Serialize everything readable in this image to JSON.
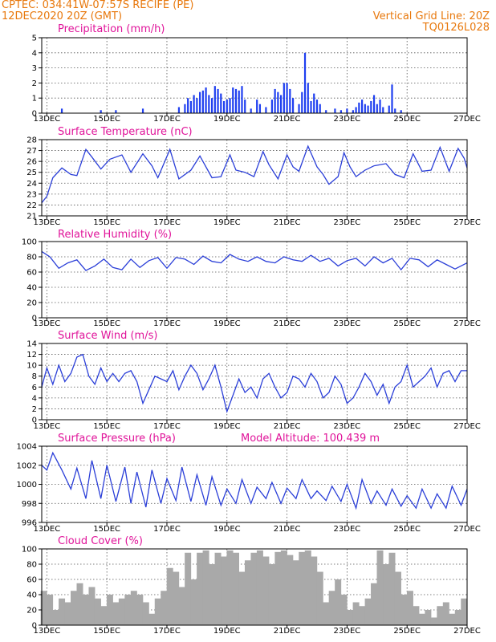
{
  "header": {
    "line1": "CPTEC:   034:41W-07:57S   RECIFE (PE)",
    "line2": "12DEC2020 20Z (GMT)",
    "right1": "Vertical Grid Line: 20Z",
    "right2": "TQ0126L028"
  },
  "colors": {
    "header": "#e8780c",
    "title": "#e0149a",
    "series": "#2b3fd8",
    "precip_bars": "#1f3ff0",
    "cloud_bars": "#a9a9a9"
  },
  "x_axis": {
    "range_days": [
      12.83,
      27.0
    ],
    "tick_days": [
      13,
      15,
      17,
      19,
      21,
      23,
      25,
      27
    ],
    "tick_labels": [
      "13DEC",
      "15DEC",
      "17DEC",
      "19DEC",
      "21DEC",
      "23DEC",
      "25DEC",
      "27DEC"
    ],
    "vertical_grid": "20Z"
  },
  "chart_data": [
    {
      "type": "bar",
      "title": "Precipitation (mm/h)",
      "ylim": [
        0,
        5
      ],
      "yticks": [
        0,
        1,
        2,
        3,
        4,
        5
      ],
      "x": [
        13.5,
        14.8,
        15.3,
        16.2,
        17.4,
        17.6,
        17.7,
        17.8,
        17.9,
        18.0,
        18.1,
        18.2,
        18.3,
        18.4,
        18.5,
        18.6,
        18.7,
        18.8,
        18.9,
        19.0,
        19.1,
        19.2,
        19.3,
        19.4,
        19.5,
        19.6,
        19.8,
        20.0,
        20.1,
        20.3,
        20.5,
        20.6,
        20.7,
        20.8,
        20.9,
        21.0,
        21.1,
        21.2,
        21.4,
        21.5,
        21.6,
        21.7,
        21.8,
        21.9,
        22.0,
        22.1,
        22.3,
        22.6,
        22.8,
        23.0,
        23.2,
        23.3,
        23.4,
        23.5,
        23.6,
        23.7,
        23.8,
        23.9,
        24.0,
        24.1,
        24.2,
        24.4,
        24.5,
        24.6,
        24.8
      ],
      "values": [
        0.3,
        0.2,
        0.2,
        0.3,
        0.4,
        0.6,
        1.0,
        0.8,
        1.2,
        1.0,
        1.4,
        1.5,
        1.7,
        1.2,
        1.0,
        1.8,
        1.6,
        1.3,
        0.8,
        0.9,
        1.0,
        1.7,
        1.6,
        1.5,
        1.8,
        0.9,
        0.3,
        0.9,
        0.6,
        0.4,
        0.9,
        1.6,
        1.4,
        1.2,
        2.0,
        2.0,
        1.6,
        1.0,
        0.6,
        1.4,
        4.0,
        2.0,
        0.8,
        1.3,
        0.9,
        0.6,
        0.2,
        0.3,
        0.2,
        0.3,
        0.2,
        0.4,
        0.7,
        0.9,
        0.6,
        0.5,
        0.8,
        1.2,
        0.6,
        0.9,
        0.4,
        0.5,
        1.9,
        0.3,
        0.2
      ]
    },
    {
      "type": "line",
      "title": "Surface Temperature (nC)",
      "ylim": [
        21,
        28
      ],
      "yticks": [
        21,
        22,
        23,
        24,
        25,
        26,
        27,
        28
      ],
      "x": [
        12.83,
        13.0,
        13.2,
        13.5,
        13.8,
        14.0,
        14.3,
        14.5,
        14.8,
        15.1,
        15.5,
        15.8,
        16.2,
        16.5,
        16.7,
        17.1,
        17.4,
        17.8,
        18.1,
        18.5,
        18.8,
        19.1,
        19.3,
        19.6,
        19.9,
        20.2,
        20.4,
        20.7,
        21.0,
        21.2,
        21.4,
        21.7,
        22.0,
        22.2,
        22.4,
        22.7,
        22.9,
        23.1,
        23.3,
        23.6,
        23.9,
        24.3,
        24.6,
        24.9,
        25.2,
        25.5,
        25.8,
        26.1,
        26.4,
        26.7,
        26.9,
        27.0
      ],
      "values": [
        22.2,
        22.8,
        24.5,
        25.4,
        24.8,
        24.7,
        27.1,
        26.4,
        25.3,
        26.2,
        26.6,
        25.0,
        26.7,
        25.6,
        24.5,
        27.1,
        24.4,
        25.2,
        26.5,
        24.5,
        24.6,
        26.6,
        25.2,
        25.0,
        24.6,
        26.9,
        25.7,
        24.4,
        26.6,
        25.5,
        25.1,
        27.4,
        25.5,
        24.8,
        23.9,
        24.6,
        26.8,
        25.5,
        24.6,
        25.2,
        25.6,
        25.8,
        24.8,
        24.5,
        26.7,
        25.1,
        25.2,
        27.3,
        25.1,
        27.2,
        26.3,
        25.4
      ]
    },
    {
      "type": "line",
      "title": "Relative Humidity (%)",
      "ylim": [
        0,
        100
      ],
      "yticks": [
        0,
        20,
        40,
        60,
        80,
        100
      ],
      "x": [
        12.83,
        13.1,
        13.4,
        13.7,
        14.0,
        14.3,
        14.6,
        14.9,
        15.2,
        15.5,
        15.8,
        16.1,
        16.4,
        16.7,
        17.0,
        17.3,
        17.6,
        17.9,
        18.2,
        18.5,
        18.8,
        19.1,
        19.4,
        19.7,
        20.0,
        20.3,
        20.6,
        20.9,
        21.2,
        21.5,
        21.8,
        22.1,
        22.4,
        22.7,
        23.0,
        23.3,
        23.6,
        23.9,
        24.2,
        24.5,
        24.8,
        25.1,
        25.4,
        25.7,
        26.0,
        26.3,
        26.6,
        27.0
      ],
      "values": [
        87,
        80,
        65,
        72,
        76,
        62,
        68,
        77,
        66,
        63,
        77,
        66,
        75,
        79,
        65,
        79,
        77,
        70,
        81,
        74,
        72,
        83,
        77,
        74,
        80,
        74,
        72,
        80,
        76,
        74,
        82,
        74,
        78,
        68,
        75,
        78,
        68,
        80,
        72,
        78,
        63,
        78,
        76,
        67,
        76,
        70,
        64,
        72
      ]
    },
    {
      "type": "line",
      "title": "Surface Wind (m/s)",
      "ylim": [
        0,
        14
      ],
      "yticks": [
        0,
        2,
        4,
        6,
        8,
        10,
        12,
        14
      ],
      "x": [
        12.83,
        13.0,
        13.2,
        13.4,
        13.6,
        13.8,
        14.0,
        14.2,
        14.4,
        14.6,
        14.8,
        15.0,
        15.2,
        15.4,
        15.6,
        15.8,
        16.0,
        16.2,
        16.4,
        16.6,
        16.8,
        17.0,
        17.2,
        17.4,
        17.6,
        17.8,
        18.0,
        18.2,
        18.4,
        18.6,
        18.8,
        19.0,
        19.2,
        19.4,
        19.6,
        19.8,
        20.0,
        20.2,
        20.4,
        20.6,
        20.8,
        21.0,
        21.2,
        21.4,
        21.6,
        21.8,
        22.0,
        22.2,
        22.4,
        22.6,
        22.8,
        23.0,
        23.2,
        23.4,
        23.6,
        23.8,
        24.0,
        24.2,
        24.4,
        24.6,
        24.8,
        25.0,
        25.2,
        25.4,
        25.6,
        25.8,
        26.0,
        26.2,
        26.4,
        26.6,
        26.8,
        27.0
      ],
      "values": [
        6,
        9.5,
        6.5,
        10,
        7,
        8.5,
        11.5,
        12,
        8,
        6.5,
        9.5,
        7,
        8.5,
        7,
        8.5,
        9,
        7,
        3,
        5.5,
        8,
        7.5,
        7,
        9,
        5.5,
        8,
        10,
        8.5,
        5.5,
        7.5,
        10,
        6,
        1.5,
        4.5,
        7.5,
        5,
        6,
        4,
        7.5,
        8.5,
        6,
        4,
        5,
        8,
        7.5,
        6,
        8.5,
        7,
        4,
        5,
        8,
        6.5,
        3,
        4,
        6,
        8.5,
        7,
        4.5,
        6.5,
        3,
        6,
        7,
        10,
        6,
        7,
        8,
        9.5,
        6,
        8.5,
        9,
        7,
        9,
        9
      ]
    },
    {
      "type": "line",
      "title": "Surface Pressure (hPa)",
      "annotation": "Model Altitude: 100.439  m",
      "ylim": [
        996,
        1004
      ],
      "yticks": [
        996,
        998,
        1000,
        1002,
        1004
      ],
      "x": [
        12.83,
        13.0,
        13.2,
        13.5,
        13.8,
        14.0,
        14.3,
        14.5,
        14.8,
        15.0,
        15.3,
        15.6,
        15.8,
        16.0,
        16.3,
        16.5,
        16.8,
        17.0,
        17.3,
        17.5,
        17.8,
        18.0,
        18.3,
        18.5,
        18.8,
        19.0,
        19.3,
        19.5,
        19.8,
        20.0,
        20.3,
        20.5,
        20.8,
        21.0,
        21.3,
        21.5,
        21.8,
        22.0,
        22.3,
        22.5,
        22.8,
        23.0,
        23.3,
        23.5,
        23.8,
        24.0,
        24.3,
        24.5,
        24.8,
        25.0,
        25.3,
        25.5,
        25.8,
        26.0,
        26.3,
        26.5,
        26.8,
        27.0
      ],
      "values": [
        1002,
        1001.5,
        1003.3,
        1001.5,
        999.5,
        1001.7,
        998.5,
        1002.5,
        998.5,
        1002,
        998.2,
        1001.8,
        998,
        1001.3,
        997.6,
        1001.5,
        998,
        1000.6,
        998.3,
        1001.8,
        998.2,
        1001,
        997.8,
        1000.8,
        997.8,
        999.5,
        998,
        1000.5,
        998,
        999.7,
        998.5,
        1000.2,
        998,
        999.6,
        998.5,
        1000.5,
        998.5,
        999.3,
        998.3,
        999.8,
        998.2,
        1000,
        997.5,
        1000.5,
        998,
        999.3,
        997.8,
        999.5,
        997.7,
        998.8,
        997.5,
        999.5,
        997.5,
        999,
        997.5,
        999.8,
        997.8,
        999.5
      ]
    },
    {
      "type": "bar",
      "title": "Cloud Cover (%)",
      "ylim": [
        0,
        100
      ],
      "yticks": [
        0,
        20,
        40,
        60,
        80,
        100
      ],
      "x": [
        12.9,
        13.1,
        13.3,
        13.5,
        13.7,
        13.9,
        14.1,
        14.3,
        14.5,
        14.7,
        14.9,
        15.1,
        15.3,
        15.5,
        15.7,
        15.9,
        16.1,
        16.3,
        16.5,
        16.7,
        16.9,
        17.1,
        17.3,
        17.5,
        17.7,
        17.9,
        18.1,
        18.3,
        18.5,
        18.7,
        18.9,
        19.1,
        19.3,
        19.5,
        19.7,
        19.9,
        20.1,
        20.3,
        20.5,
        20.7,
        20.9,
        21.1,
        21.3,
        21.5,
        21.7,
        21.9,
        22.1,
        22.3,
        22.5,
        22.7,
        22.9,
        23.1,
        23.3,
        23.5,
        23.7,
        23.9,
        24.1,
        24.3,
        24.5,
        24.7,
        24.9,
        25.1,
        25.3,
        25.5,
        25.7,
        25.9,
        26.1,
        26.3,
        26.5,
        26.7,
        26.9
      ],
      "values": [
        45,
        40,
        20,
        35,
        30,
        45,
        55,
        40,
        50,
        35,
        25,
        40,
        30,
        35,
        40,
        45,
        40,
        30,
        15,
        35,
        45,
        75,
        70,
        50,
        95,
        60,
        95,
        98,
        80,
        95,
        90,
        98,
        95,
        70,
        85,
        95,
        98,
        90,
        80,
        96,
        98,
        92,
        85,
        96,
        98,
        90,
        70,
        30,
        45,
        60,
        40,
        20,
        30,
        25,
        35,
        55,
        98,
        80,
        95,
        70,
        40,
        45,
        25,
        15,
        20,
        10,
        25,
        30,
        15,
        20,
        35
      ]
    }
  ]
}
